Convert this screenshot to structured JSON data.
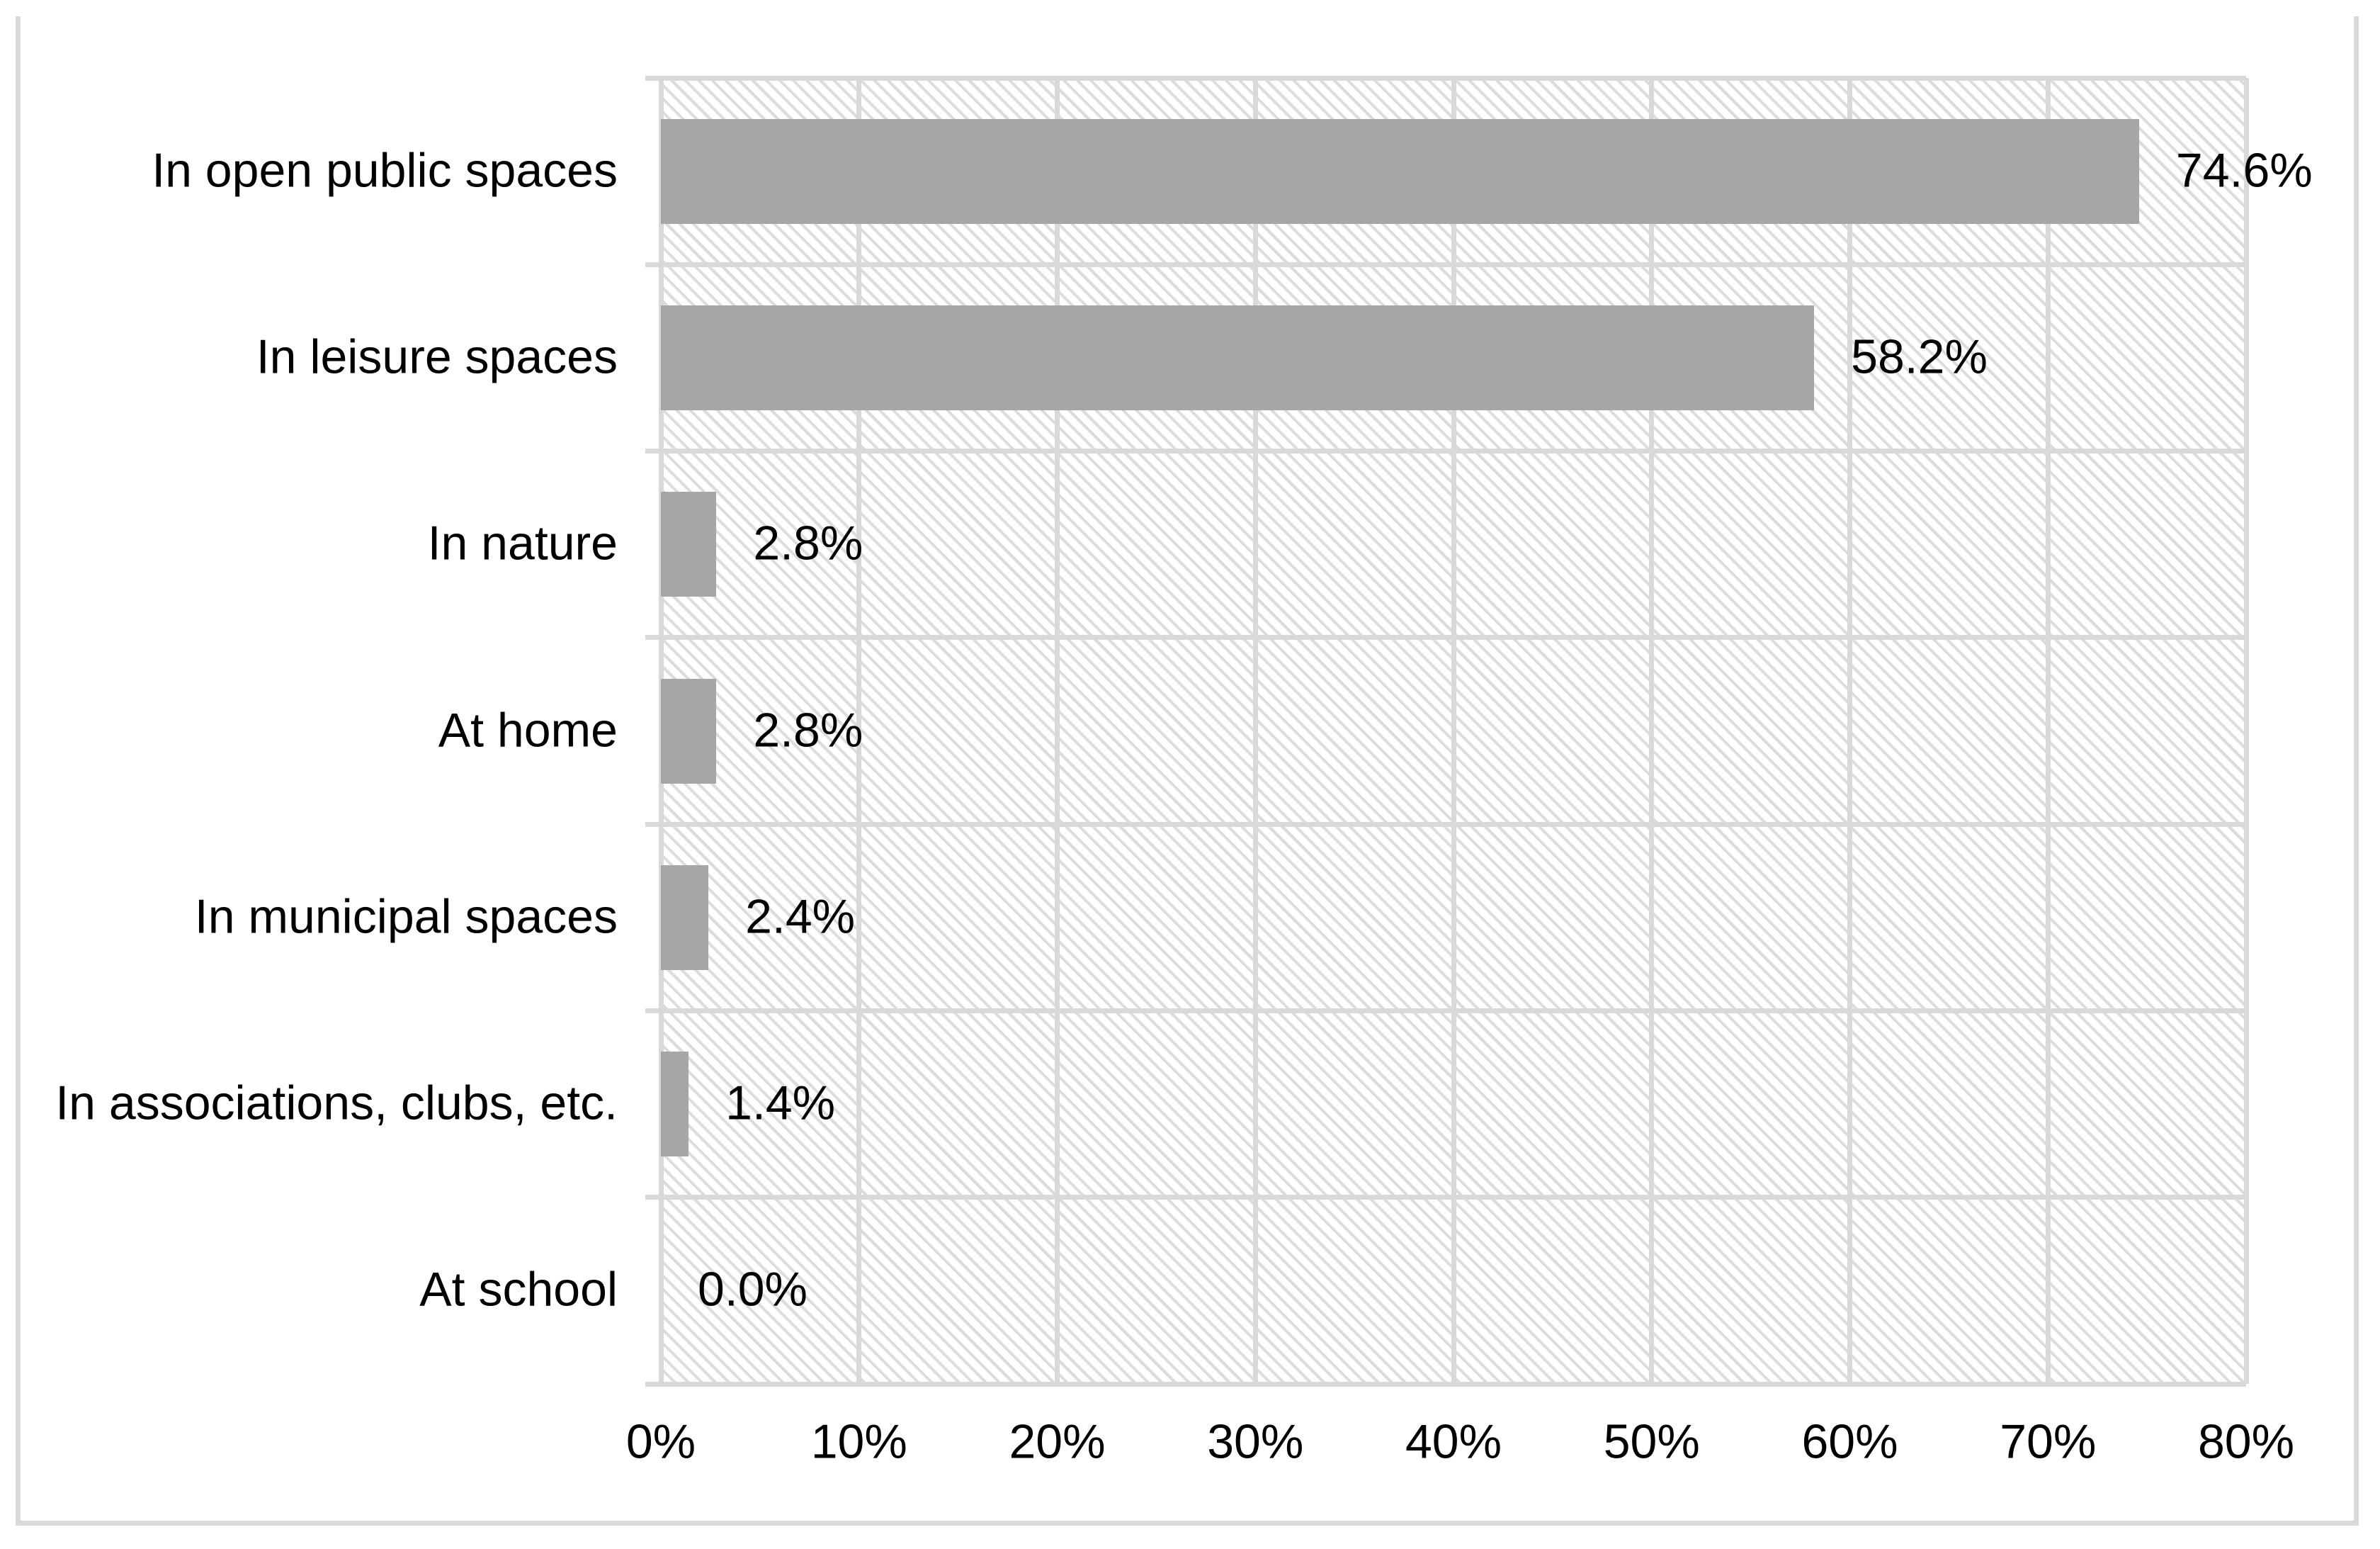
{
  "chart_data": {
    "type": "bar",
    "orientation": "horizontal",
    "categories": [
      "In open public spaces",
      "In leisure spaces",
      "In nature",
      "At home",
      "In municipal spaces",
      "In associations, clubs, etc.",
      "At school"
    ],
    "values": [
      74.6,
      58.2,
      2.8,
      2.8,
      2.4,
      1.4,
      0.0
    ],
    "data_labels": [
      "74.6%",
      "58.2%",
      "2.8%",
      "2.8%",
      "2.4%",
      "1.4%",
      "0.0%"
    ],
    "x_tick_labels": [
      "0%",
      "10%",
      "20%",
      "30%",
      "40%",
      "50%",
      "60%",
      "70%",
      "80%"
    ],
    "xlim": [
      0,
      80
    ],
    "x_tick_step": 10,
    "grid": true,
    "legend": "none",
    "bar_color": "#a6a6a6",
    "gridline_color": "#d9d9d9",
    "chart_border_color": "#d9d9d9",
    "plot_background": "light-diagonal-hatch",
    "hatch_color": "#dcdcdc",
    "text_color": "#000000"
  }
}
